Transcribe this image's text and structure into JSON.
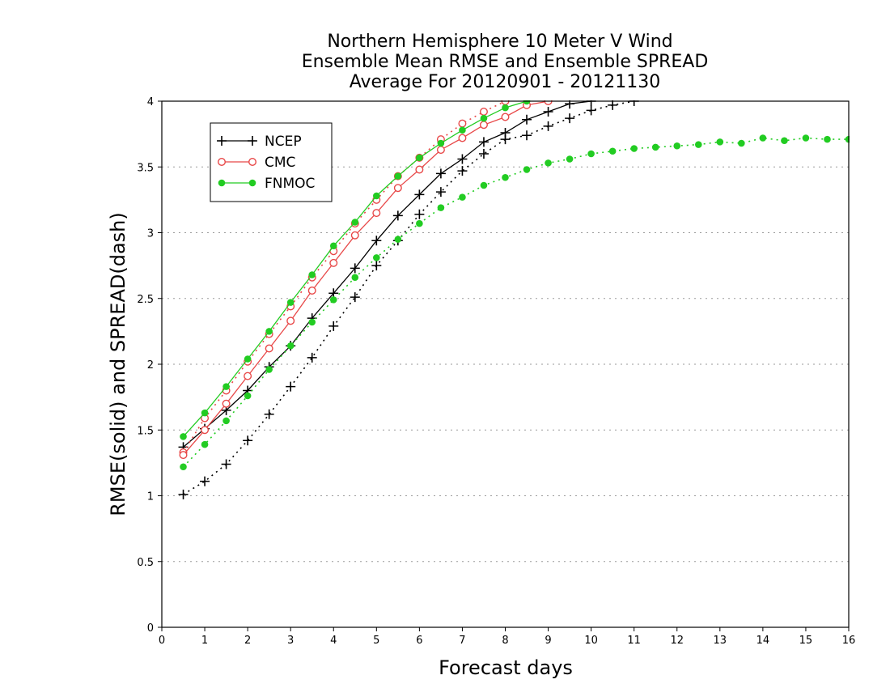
{
  "chart_data": {
    "type": "line",
    "title": [
      "Northern Hemisphere 10 Meter V Wind",
      "Ensemble Mean RMSE and Ensemble SPREAD",
      "Average For 20120901 - 20121130"
    ],
    "xlabel": "Forecast days",
    "ylabel": "RMSE(solid) and SPREAD(dash)",
    "xlim": [
      0,
      16
    ],
    "ylim": [
      0,
      4
    ],
    "xticks": [
      "0",
      "1",
      "2",
      "3",
      "4",
      "5",
      "6",
      "7",
      "8",
      "9",
      "10",
      "11",
      "12",
      "13",
      "14",
      "15",
      "16"
    ],
    "yticks": [
      "0",
      "0.5",
      "1",
      "1.5",
      "2",
      "2.5",
      "3",
      "3.5",
      "4"
    ],
    "grid": "horizontal dotted",
    "legend_position": "top-left",
    "series": [
      {
        "name": "NCEP",
        "color": "#000000",
        "marker": "plus",
        "rmse": {
          "x": [
            0.5,
            1,
            1.5,
            2,
            2.5,
            3,
            3.5,
            4,
            4.5,
            5,
            5.5,
            6,
            6.5,
            7,
            7.5,
            8,
            8.5,
            9,
            9.5,
            10
          ],
          "y": [
            1.37,
            1.51,
            1.65,
            1.8,
            1.98,
            2.14,
            2.35,
            2.54,
            2.73,
            2.94,
            3.13,
            3.29,
            3.45,
            3.56,
            3.69,
            3.76,
            3.86,
            3.92,
            3.98,
            4.0
          ]
        },
        "spread": {
          "x": [
            0.5,
            1,
            1.5,
            2,
            2.5,
            3,
            3.5,
            4,
            4.5,
            5,
            5.5,
            6,
            6.5,
            7,
            7.5,
            8,
            8.5,
            9,
            9.5,
            10,
            10.5,
            11
          ],
          "y": [
            1.01,
            1.11,
            1.24,
            1.42,
            1.62,
            1.83,
            2.05,
            2.29,
            2.51,
            2.75,
            2.94,
            3.14,
            3.31,
            3.47,
            3.6,
            3.71,
            3.74,
            3.81,
            3.87,
            3.93,
            3.97,
            4.0
          ]
        }
      },
      {
        "name": "CMC",
        "color": "#e84848",
        "marker": "circle-open",
        "rmse": {
          "x": [
            0.5,
            1,
            1.5,
            2,
            2.5,
            3,
            3.5,
            4,
            4.5,
            5,
            5.5,
            6,
            6.5,
            7,
            7.5,
            8,
            8.5,
            9
          ],
          "y": [
            1.31,
            1.5,
            1.7,
            1.91,
            2.12,
            2.33,
            2.56,
            2.77,
            2.98,
            3.15,
            3.34,
            3.48,
            3.63,
            3.72,
            3.82,
            3.88,
            3.97,
            4.0
          ]
        },
        "spread": {
          "x": [
            0.5,
            1,
            1.5,
            2,
            2.5,
            3,
            3.5,
            4,
            4.5,
            5,
            5.5,
            6,
            6.5,
            7,
            7.5,
            8
          ],
          "y": [
            1.33,
            1.59,
            1.8,
            2.02,
            2.23,
            2.44,
            2.66,
            2.86,
            3.07,
            3.25,
            3.43,
            3.57,
            3.71,
            3.83,
            3.92,
            4.0
          ]
        }
      },
      {
        "name": "FNMOC",
        "color": "#22cc22",
        "marker": "circle-filled",
        "rmse": {
          "x": [
            0.5,
            1,
            1.5,
            2,
            2.5,
            3,
            3.5,
            4,
            4.5,
            5,
            5.5,
            6,
            6.5,
            7,
            7.5,
            8,
            8.5
          ],
          "y": [
            1.45,
            1.63,
            1.83,
            2.04,
            2.25,
            2.47,
            2.68,
            2.9,
            3.08,
            3.28,
            3.43,
            3.57,
            3.68,
            3.78,
            3.87,
            3.95,
            4.0
          ]
        },
        "spread": {
          "x": [
            0.5,
            1,
            1.5,
            2,
            2.5,
            3,
            3.5,
            4,
            4.5,
            5,
            5.5,
            6,
            6.5,
            7,
            7.5,
            8,
            8.5,
            9,
            9.5,
            10,
            10.5,
            11,
            11.5,
            12,
            12.5,
            13,
            13.5,
            14,
            14.5,
            15,
            15.5,
            16
          ],
          "y": [
            1.22,
            1.39,
            1.57,
            1.76,
            1.96,
            2.14,
            2.32,
            2.49,
            2.66,
            2.81,
            2.95,
            3.07,
            3.19,
            3.27,
            3.36,
            3.42,
            3.48,
            3.53,
            3.56,
            3.6,
            3.62,
            3.64,
            3.65,
            3.66,
            3.67,
            3.69,
            3.68,
            3.72,
            3.7,
            3.72,
            3.71,
            3.71
          ]
        }
      }
    ]
  }
}
